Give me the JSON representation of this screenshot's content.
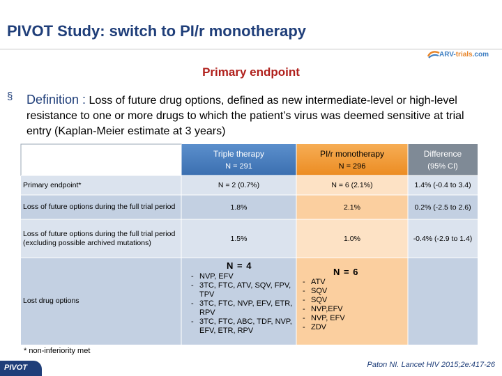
{
  "slide": {
    "title": "PIVOT Study: switch to PI/r monotherapy",
    "logo_text_main": "ARV-",
    "logo_text_accent": "trials",
    "logo_text_suffix": ".com",
    "subtitle": "Primary endpoint",
    "bullet_symbol": "§",
    "definition_label": "Definition :",
    "definition_text": " Loss of future drug options, defined as new intermediate-level or high-level resistance to one or more drugs to which the patient’s virus was deemed sensitive at trial entry (Kaplan-Meier estimate at 3 years)"
  },
  "table": {
    "headers": [
      {
        "title": "Triple therapy",
        "sub": "N = 291"
      },
      {
        "title": "PI/r monotherapy",
        "sub": "N = 296"
      },
      {
        "title": "Difference",
        "sub": "(95% CI)"
      }
    ],
    "rows": [
      {
        "label": "Primary endpoint*",
        "values": [
          "N = 2 (0.7%)",
          "N = 6 (2.1%)",
          "1.4% (-0.4 to 3.4)"
        ]
      },
      {
        "label": "Loss of future options during the full trial period",
        "values": [
          "1.8%",
          "2.1%",
          "0.2% (-2.5 to 2.6)"
        ]
      },
      {
        "label": "Loss of future options during the full trial period (excluding possible archived mutations)",
        "values": [
          "1.5%",
          "1.0%",
          "-0.4% (-2.9 to 1.4)"
        ]
      }
    ],
    "lost": {
      "label": "Lost drug options",
      "triple_count": "N = 4",
      "triple_items": [
        "NVP, EFV",
        "3TC, FTC, ATV, SQV, FPV, TPV",
        "3TC, FTC, NVP, EFV, ETR, RPV",
        "3TC, FTC, ABC, TDF, NVP, EFV, ETR, RPV"
      ],
      "mono_count": "N = 6",
      "mono_items": [
        "ATV",
        "SQV",
        "SQV",
        "NVP,EFV",
        "NVP, EFV",
        "ZDV"
      ]
    }
  },
  "footnote": "* non-inferiority met",
  "citation": "Paton NI. Lancet HIV 2015;2e:417-26",
  "footer_label": "PIVOT",
  "colors": {
    "navy": "#1f3e79",
    "table_blue": "#4a7ebb",
    "table_orange": "#f19a38",
    "table_gray": "#7f8a96",
    "row_light": "#dbe3ee",
    "row_mid": "#c3d0e2",
    "orange_light": "#fde2c5",
    "orange_mid": "#fbcf9f",
    "red": "#b0201c"
  }
}
